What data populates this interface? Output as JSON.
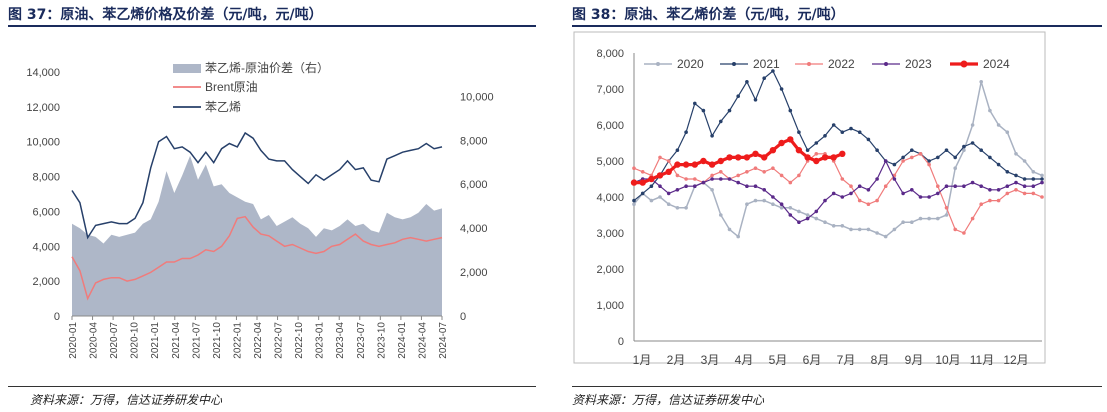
{
  "left": {
    "title": "图 37：原油、苯乙烯价格及价差（元/吨，元/吨）",
    "source": "资料来源：万得，信达证券研发中心",
    "chart_data": {
      "type": "area+line",
      "x_ticks": [
        "2020-01",
        "2020-04",
        "2020-07",
        "2020-10",
        "2021-01",
        "2021-04",
        "2021-07",
        "2021-10",
        "2022-01",
        "2022-04",
        "2022-07",
        "2022-10",
        "2023-01",
        "2023-04",
        "2023-07",
        "2023-10",
        "2024-01",
        "2024-04",
        "2024-07"
      ],
      "y_left_ticks": [
        "0",
        "2,000",
        "4,000",
        "6,000",
        "8,000",
        "10,000",
        "12,000",
        "14,000"
      ],
      "y_left_range": [
        0,
        14000
      ],
      "y_right_ticks": [
        "0",
        "2,000",
        "4,000",
        "6,000",
        "8,000",
        "10,000"
      ],
      "y_right_range": [
        0,
        11111
      ],
      "series": [
        {
          "name": "苯乙烯-原油价差（右）",
          "kind": "area",
          "axis": "right",
          "color": "#aeb7c8",
          "values": [
            4200,
            4000,
            3700,
            3600,
            3300,
            3700,
            3600,
            3700,
            3800,
            4200,
            4400,
            5200,
            6600,
            5600,
            6400,
            7300,
            6200,
            6900,
            5900,
            6000,
            5600,
            5400,
            5200,
            5100,
            4400,
            4600,
            4100,
            4300,
            4500,
            4200,
            4000,
            3600,
            4000,
            3900,
            4100,
            4400,
            4100,
            4200,
            3900,
            3800,
            4700,
            4500,
            4400,
            4500,
            4700,
            5100,
            4800,
            4900
          ]
        },
        {
          "name": "Brent原油",
          "kind": "line",
          "axis": "left",
          "color": "#f07b7b",
          "values": [
            3400,
            2600,
            1000,
            1900,
            2100,
            2200,
            2200,
            2000,
            2100,
            2300,
            2500,
            2800,
            3100,
            3100,
            3300,
            3300,
            3500,
            3800,
            3700,
            4000,
            4600,
            5600,
            5700,
            5100,
            4700,
            4600,
            4300,
            4000,
            4100,
            3900,
            3700,
            3600,
            3700,
            4000,
            4100,
            4400,
            4700,
            4300,
            4100,
            4000,
            4100,
            4200,
            4400,
            4500,
            4400,
            4300,
            4400,
            4500
          ]
        },
        {
          "name": "苯乙烯",
          "kind": "line",
          "axis": "left",
          "color": "#27406a",
          "values": [
            7200,
            6500,
            4500,
            5200,
            5300,
            5400,
            5300,
            5300,
            5600,
            6500,
            8500,
            10000,
            10300,
            9600,
            9700,
            9400,
            8800,
            9400,
            8800,
            9600,
            9900,
            9700,
            10500,
            10200,
            9500,
            9000,
            8900,
            8900,
            8400,
            8000,
            7600,
            8100,
            7800,
            8100,
            8400,
            8900,
            8400,
            8500,
            7800,
            7700,
            9000,
            9200,
            9400,
            9500,
            9600,
            9900,
            9600,
            9700
          ]
        }
      ]
    }
  },
  "right": {
    "title": "图 38：原油、苯乙烯价差（元/吨，元/吨）",
    "source": "资料来源：万得，信达证券研发中心",
    "chart_data": {
      "type": "line",
      "x_ticks": [
        "1月",
        "2月",
        "3月",
        "4月",
        "5月",
        "6月",
        "7月",
        "8月",
        "9月",
        "10月",
        "11月",
        "12月"
      ],
      "y_ticks": [
        "0",
        "1,000",
        "2,000",
        "3,000",
        "4,000",
        "5,000",
        "6,000",
        "7,000",
        "8,000"
      ],
      "y_range": [
        0,
        8000
      ],
      "series": [
        {
          "name": "2020",
          "color": "#a9b2c2",
          "width": 1.5,
          "values": [
            3800,
            4100,
            3900,
            4000,
            3800,
            3700,
            3700,
            4300,
            4400,
            4200,
            3500,
            3100,
            2900,
            3800,
            3900,
            3900,
            3800,
            3700,
            3700,
            3600,
            3500,
            3400,
            3300,
            3200,
            3200,
            3100,
            3100,
            3100,
            3000,
            2900,
            3100,
            3300,
            3300,
            3400,
            3400,
            3400,
            3500,
            4800,
            5300,
            6000,
            7200,
            6400,
            6000,
            5800,
            5200,
            5000,
            4700,
            4600
          ]
        },
        {
          "name": "2021",
          "color": "#27406a",
          "width": 1.2,
          "values": [
            3900,
            4100,
            4300,
            4600,
            5000,
            5300,
            5800,
            6600,
            6400,
            5700,
            6100,
            6400,
            6800,
            7200,
            6700,
            7300,
            7500,
            7000,
            6400,
            5800,
            5300,
            5500,
            5700,
            6000,
            5800,
            5900,
            5800,
            5600,
            5300,
            5000,
            4900,
            5100,
            5300,
            5200,
            5000,
            5100,
            5300,
            5100,
            5400,
            5500,
            5300,
            5100,
            4900,
            4700,
            4600,
            4500,
            4500,
            4500
          ]
        },
        {
          "name": "2022",
          "color": "#f07b7b",
          "width": 1.2,
          "values": [
            4800,
            4700,
            4600,
            5100,
            5000,
            4600,
            4500,
            4500,
            4400,
            4600,
            4700,
            4500,
            4600,
            4700,
            4800,
            4700,
            4800,
            4600,
            4400,
            4600,
            5000,
            5200,
            5200,
            5000,
            4500,
            4300,
            3900,
            3800,
            3900,
            4300,
            4600,
            5000,
            5100,
            5200,
            4900,
            4300,
            3700,
            3100,
            3000,
            3400,
            3800,
            3900,
            3900,
            4100,
            4200,
            4100,
            4100,
            4000
          ]
        },
        {
          "name": "2023",
          "color": "#5b2a8a",
          "width": 1.2,
          "values": [
            4400,
            4500,
            4500,
            4300,
            4100,
            4200,
            4300,
            4300,
            4400,
            4500,
            4500,
            4500,
            4400,
            4300,
            4300,
            4200,
            4000,
            3800,
            3500,
            3300,
            3400,
            3600,
            3900,
            4100,
            4000,
            4100,
            4300,
            4200,
            4500,
            5000,
            4500,
            4100,
            4200,
            4000,
            4000,
            4100,
            4300,
            4300,
            4300,
            4400,
            4300,
            4200,
            4200,
            4300,
            4400,
            4300,
            4300,
            4400
          ]
        },
        {
          "name": "2024",
          "color": "#ee1c1c",
          "width": 3.2,
          "values": [
            4400,
            4400,
            4500,
            4600,
            4700,
            4900,
            4900,
            4900,
            5000,
            4900,
            5000,
            5100,
            5100,
            5100,
            5200,
            5100,
            5300,
            5500,
            5600,
            5300,
            5100,
            5000,
            5100,
            5100,
            5200
          ]
        }
      ]
    }
  }
}
